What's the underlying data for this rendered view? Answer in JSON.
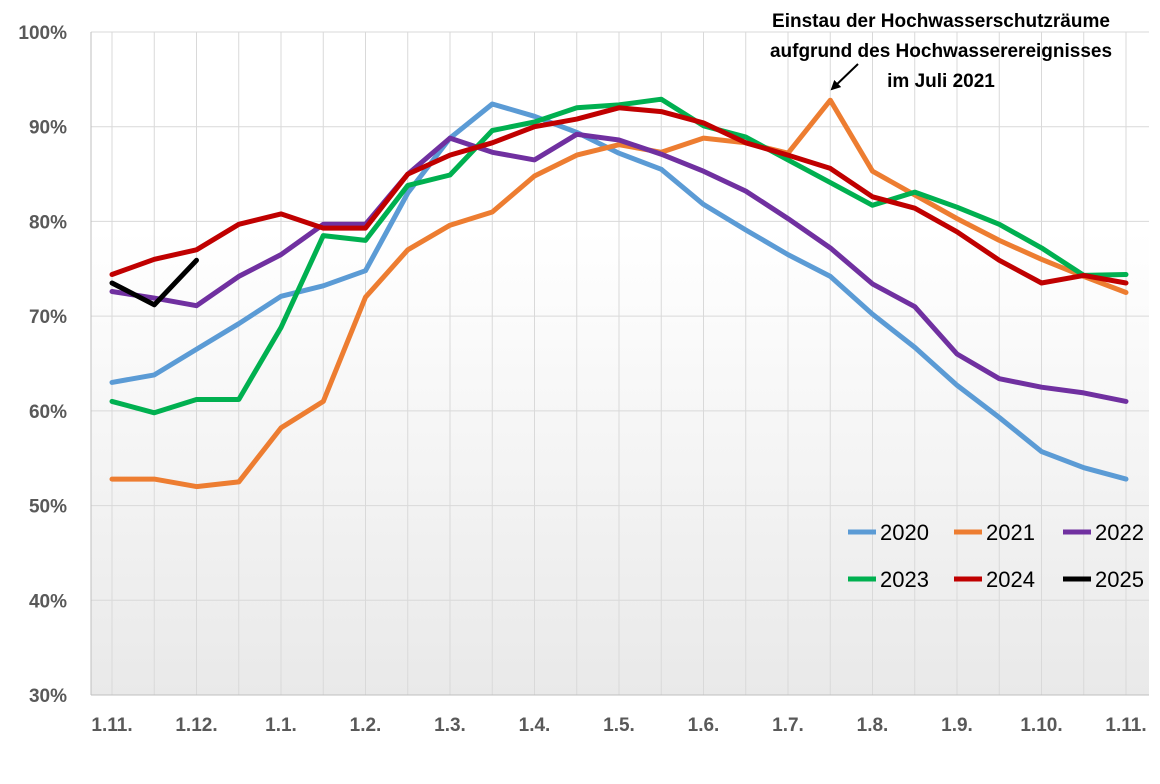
{
  "chart_data": {
    "type": "line",
    "title": "",
    "xlabel": "",
    "ylabel": "",
    "ylim": [
      30,
      100
    ],
    "y_ticks": [
      30,
      40,
      50,
      60,
      70,
      80,
      90,
      100
    ],
    "y_tick_labels": [
      "30%",
      "40%",
      "50%",
      "60%",
      "70%",
      "80%",
      "90%",
      "100%"
    ],
    "x_tick_labels": [
      "1.11.",
      "1.12.",
      "1.1.",
      "1.2.",
      "1.3.",
      "1.4.",
      "1.5.",
      "1.6.",
      "1.7.",
      "1.8.",
      "1.9.",
      "1.10.",
      "1.11."
    ],
    "x_points": 25,
    "grid": "vertical-and-horizontal",
    "legend_position": "bottom-right",
    "annotation": {
      "lines": [
        "Einstau der Hochwasserschutzräume",
        "aufgrund des Hochwasserereignisses",
        "im Juli 2021"
      ],
      "points_to_series": "2021",
      "points_to_index": 17
    },
    "series": [
      {
        "name": "2020",
        "color": "#5B9BD5",
        "values": [
          63.0,
          63.8,
          66.5,
          69.2,
          72.1,
          73.2,
          74.8,
          83.0,
          88.8,
          92.4,
          91.1,
          89.4,
          87.2,
          85.5,
          81.8,
          79.1,
          76.5,
          74.2,
          70.2,
          66.7,
          62.7,
          59.3,
          55.7,
          54.0,
          52.8
        ]
      },
      {
        "name": "2021",
        "color": "#ED7D31",
        "values": [
          52.8,
          52.8,
          52.0,
          52.5,
          58.2,
          61.0,
          72.0,
          77.0,
          79.6,
          81.0,
          84.8,
          87.0,
          88.1,
          87.3,
          88.8,
          88.3,
          87.2,
          92.8,
          85.3,
          82.8,
          80.3,
          78.0,
          76.0,
          74.2,
          72.5
        ]
      },
      {
        "name": "2022",
        "color": "#7030A0",
        "values": [
          72.6,
          71.9,
          71.1,
          74.2,
          76.5,
          79.7,
          79.7,
          85.0,
          88.8,
          87.3,
          86.5,
          89.2,
          88.6,
          87.1,
          85.3,
          83.2,
          80.3,
          77.2,
          73.4,
          71.0,
          66.0,
          63.4,
          62.5,
          61.9,
          61.0
        ]
      },
      {
        "name": "2023",
        "color": "#00B050",
        "values": [
          61.0,
          59.8,
          61.2,
          61.2,
          68.8,
          78.5,
          78.0,
          83.8,
          84.9,
          89.6,
          90.5,
          92.0,
          92.3,
          92.9,
          90.1,
          88.9,
          86.5,
          84.1,
          81.7,
          83.1,
          81.5,
          79.7,
          77.2,
          74.3,
          74.4
        ]
      },
      {
        "name": "2024",
        "color": "#C00000",
        "values": [
          74.4,
          76.0,
          77.0,
          79.7,
          80.8,
          79.3,
          79.3,
          85.0,
          87.0,
          88.3,
          90.0,
          90.8,
          92.0,
          91.6,
          90.4,
          88.3,
          87.0,
          85.6,
          82.6,
          81.4,
          78.9,
          75.9,
          73.5,
          74.3,
          73.5
        ]
      },
      {
        "name": "2025",
        "color": "#000000",
        "values": [
          73.5,
          71.2,
          75.9,
          null,
          null,
          null,
          null,
          null,
          null,
          null,
          null,
          null,
          null,
          null,
          null,
          null,
          null,
          null,
          null,
          null,
          null,
          null,
          null,
          null,
          null
        ]
      }
    ]
  }
}
